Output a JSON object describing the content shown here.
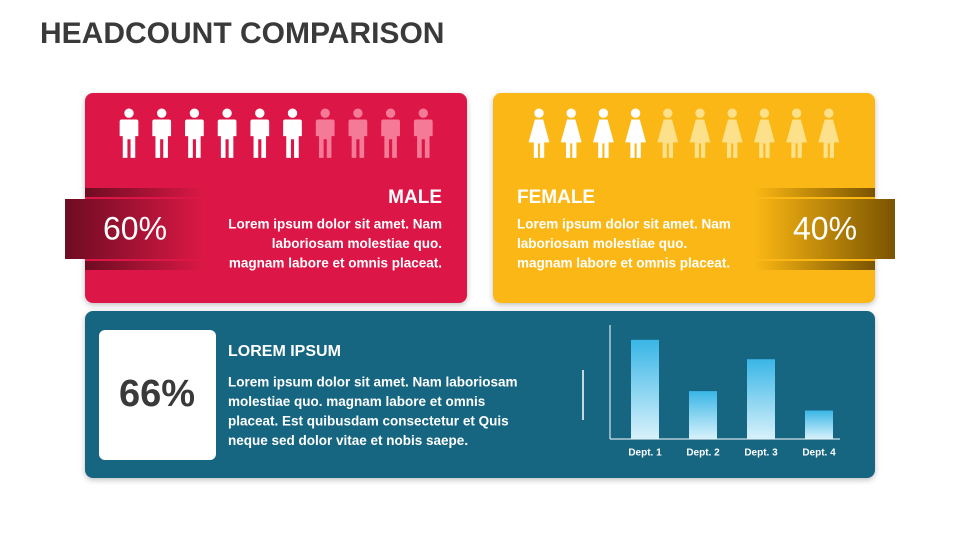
{
  "title": "HEADCOUNT COMPARISON",
  "male": {
    "heading": "MALE",
    "percent": "60%",
    "lines": [
      "Lorem ipsum dolor sit amet. Nam",
      "laboriosam molestiae quo.",
      "magnam labore et omnis placeat."
    ]
  },
  "female": {
    "heading": "FEMALE",
    "percent": "40%",
    "lines": [
      "Lorem ipsum dolor sit amet. Nam",
      "laboriosam molestiae quo.",
      "magnam labore et omnis placeat."
    ]
  },
  "summary": {
    "heading": "LOREM IPSUM",
    "percent": "66%",
    "lines": [
      "Lorem ipsum dolor sit amet. Nam laboriosam",
      "molestiae quo. magnam labore et omnis",
      "placeat. Est quibusdam consectetur et Quis",
      "neque sed dolor vitae et nobis saepe."
    ]
  },
  "chart_data": {
    "type": "bar",
    "categories": [
      "Dept. 1",
      "Dept. 2",
      "Dept. 3",
      "Dept. 4"
    ],
    "values": [
      87,
      42,
      70,
      25
    ],
    "ylim": [
      0,
      100
    ]
  }
}
